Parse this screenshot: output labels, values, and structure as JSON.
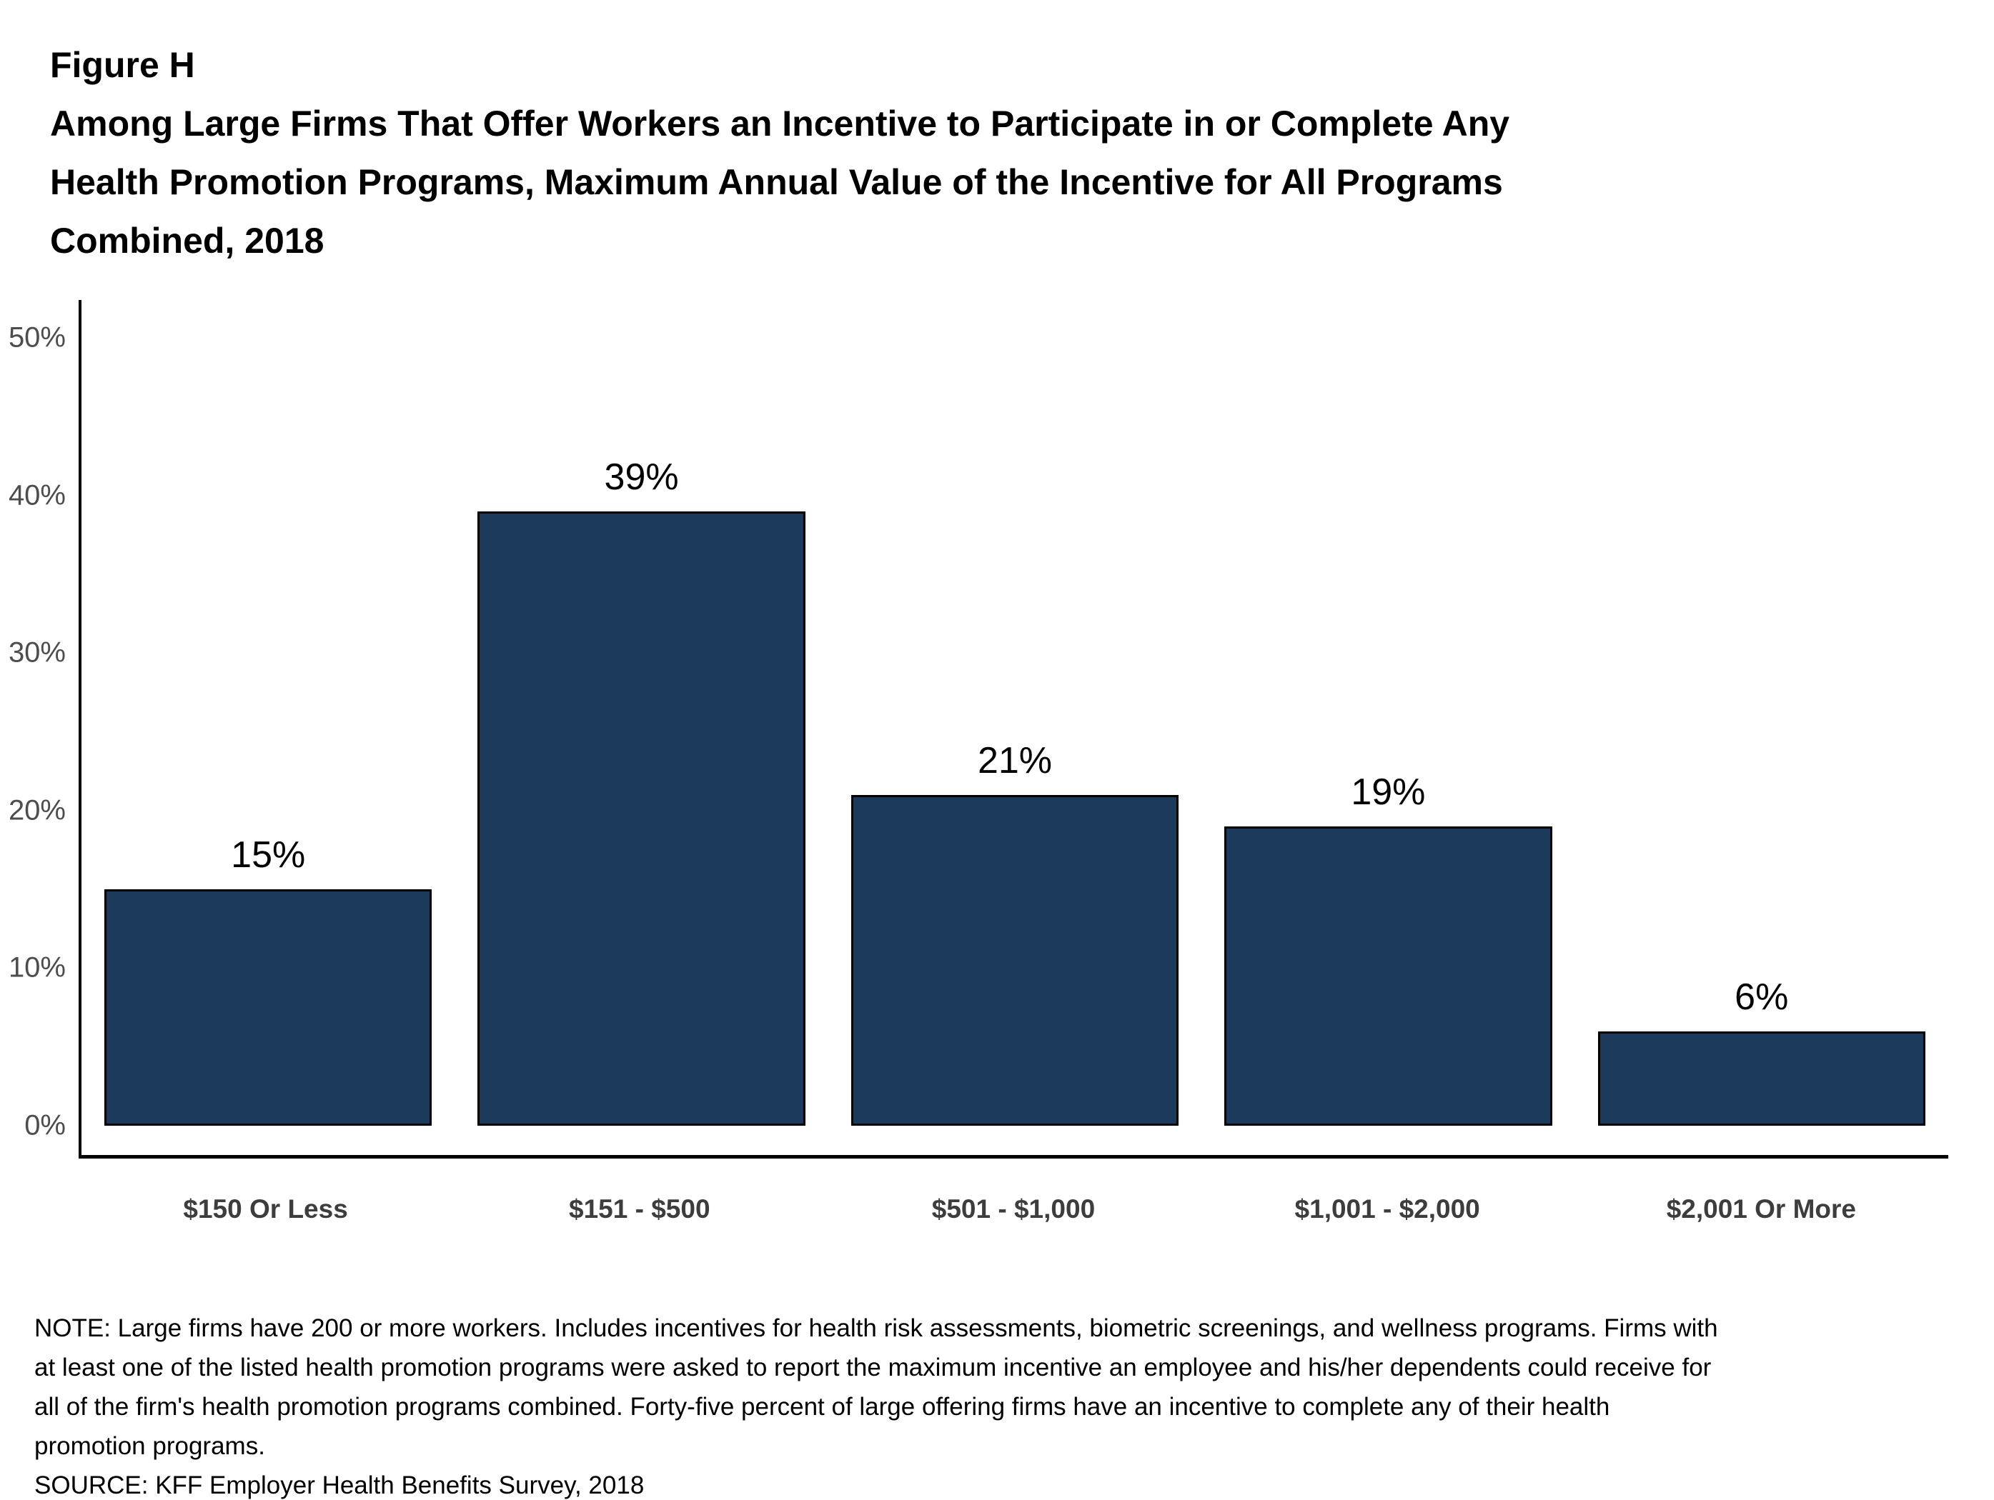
{
  "figure": {
    "label": "Figure H",
    "title_lines": [
      "Among Large Firms That Offer Workers an Incentive to Participate in or Complete Any",
      "Health Promotion Programs, Maximum Annual Value of the Incentive for All Programs",
      "Combined, 2018"
    ]
  },
  "chart_data": {
    "type": "bar",
    "title": "Among Large Firms That Offer Workers an Incentive to Participate in or Complete Any Health Promotion Programs, Maximum Annual Value of the Incentive for All Programs Combined, 2018",
    "categories": [
      "$150 Or Less",
      "$151 - $500",
      "$501 - $1,000",
      "$1,001 - $2,000",
      "$2,001 Or More"
    ],
    "values": [
      15,
      39,
      21,
      19,
      6
    ],
    "value_labels": [
      "15%",
      "39%",
      "21%",
      "19%",
      "6%"
    ],
    "xlabel": "",
    "ylabel": "",
    "ylim": [
      0,
      50
    ],
    "yticks": [
      0,
      10,
      20,
      30,
      40,
      50
    ],
    "ytick_labels": [
      "0%",
      "10%",
      "20%",
      "30%",
      "40%",
      "50%"
    ],
    "grid": false,
    "legend": "none",
    "bar_color": "#1B3A5C",
    "bar_border_color": "#000000",
    "axis_color": "#000000"
  },
  "footer": {
    "note_lines": [
      "NOTE: Large firms have 200 or more workers. Includes incentives for health risk assessments, biometric screenings, and wellness programs. Firms with",
      "at least one of the listed health promotion programs were asked to report the maximum incentive an employee and his/her dependents could receive for",
      "all of the firm's health promotion programs combined. Forty-five percent of large offering firms have an incentive to complete any of their health",
      "promotion programs."
    ],
    "source": "SOURCE: KFF Employer Health Benefits Survey, 2018"
  }
}
